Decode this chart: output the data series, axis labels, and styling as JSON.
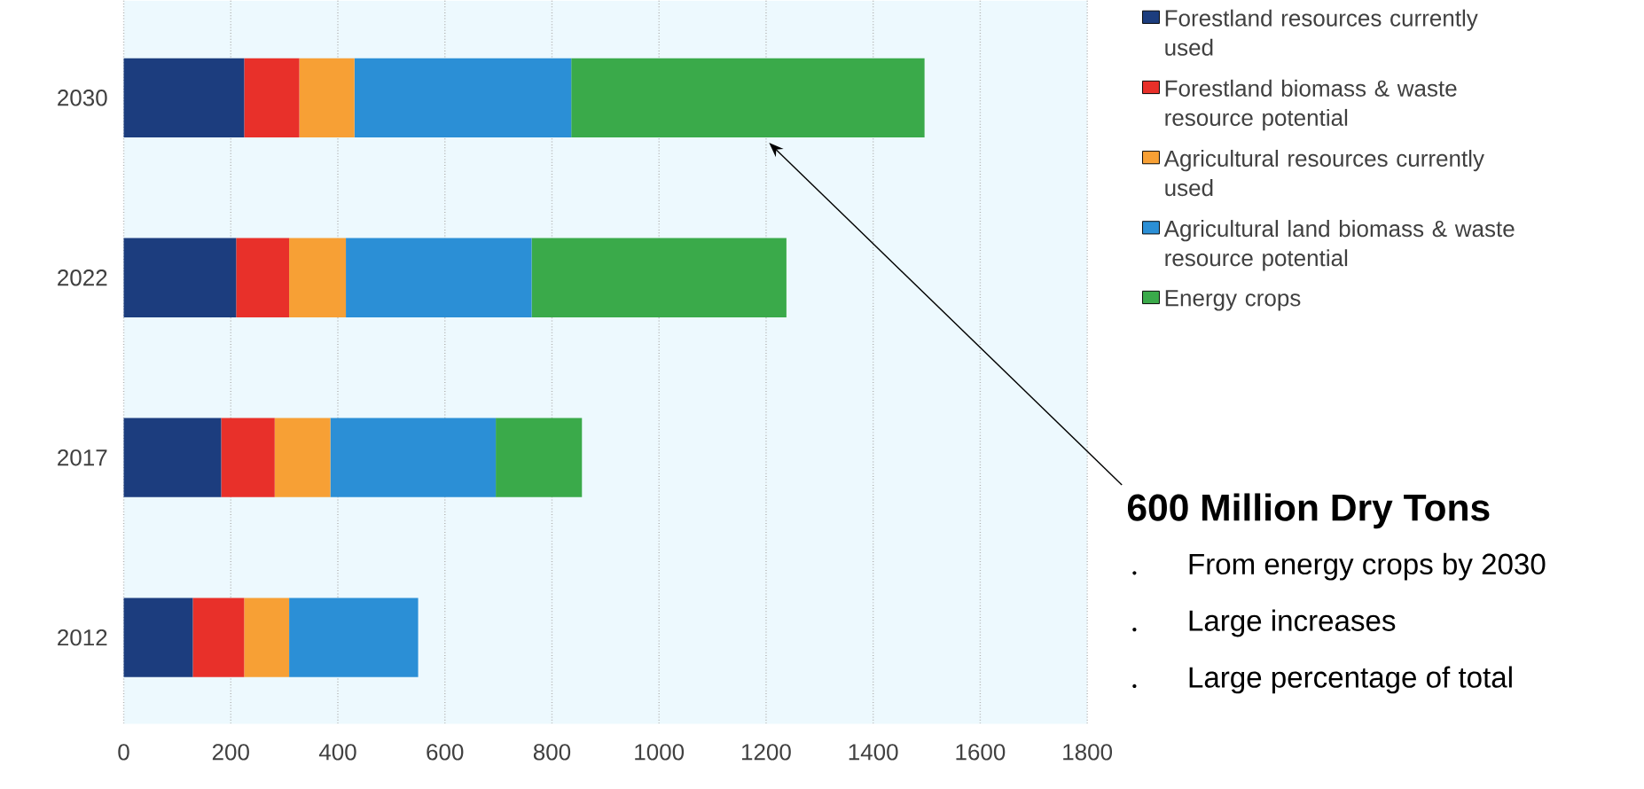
{
  "chart_data": {
    "type": "bar",
    "orientation": "horizontal",
    "stacked": true,
    "categories": [
      "2030",
      "2022",
      "2017",
      "2012"
    ],
    "series": [
      {
        "name": "Forestland resources currently used",
        "color": "#1c3d7e",
        "values": [
          225,
          210,
          182,
          129
        ]
      },
      {
        "name": "Forestland biomass & waste resource potential",
        "color": "#e8302a",
        "values": [
          103,
          99,
          100,
          96
        ]
      },
      {
        "name": "Agricultural resources currently used",
        "color": "#f7a035",
        "values": [
          103,
          106,
          104,
          84
        ]
      },
      {
        "name": "Agricultural land biomass & waste resource potential",
        "color": "#2b8fd6",
        "values": [
          405,
          347,
          309,
          241
        ]
      },
      {
        "name": "Energy crops",
        "color": "#3aaa4a",
        "values": [
          660,
          476,
          161,
          null
        ]
      }
    ],
    "xlim": [
      0,
      1800
    ],
    "xticks": [
      0,
      200,
      400,
      600,
      800,
      1000,
      1200,
      1400,
      1600,
      1800
    ],
    "grid": "x",
    "legend": "top right",
    "annotations": [
      "600 Million Dry Tons",
      "From energy crops by 2030",
      "Large increases",
      "Large percentage of total"
    ]
  }
}
